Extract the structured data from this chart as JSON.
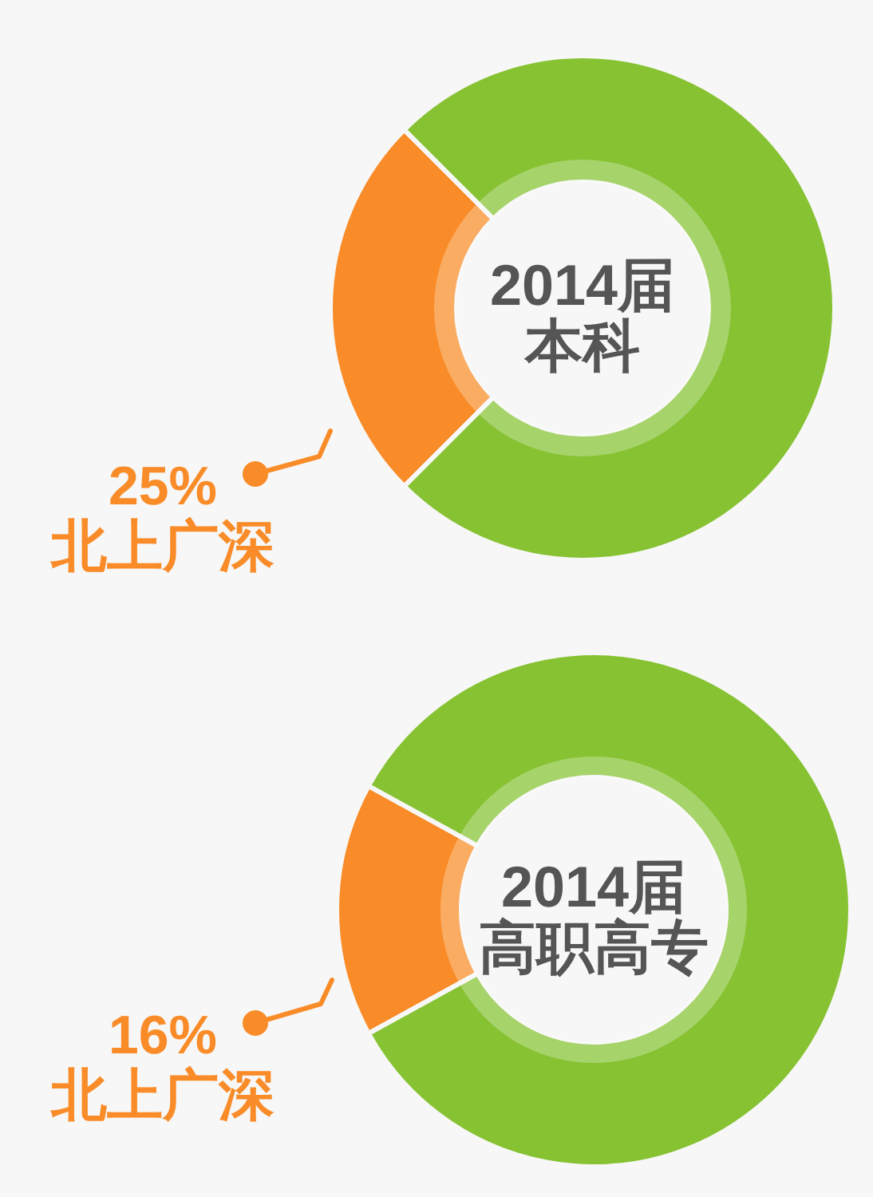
{
  "chart_data": [
    {
      "type": "donut",
      "title": "2014届",
      "subtitle": "本科",
      "categories": [
        "北上广深",
        null
      ],
      "values": [
        25,
        75
      ],
      "colors": [
        "#f98c28",
        "#86c232"
      ],
      "value_labels": [
        "25%",
        null
      ]
    },
    {
      "type": "donut",
      "title": "2014届",
      "subtitle": "高职高专",
      "categories": [
        "北上广深",
        null
      ],
      "values": [
        16,
        84
      ],
      "colors": [
        "#f98c28",
        "#86c232"
      ],
      "value_labels": [
        "16%",
        null
      ]
    }
  ]
}
